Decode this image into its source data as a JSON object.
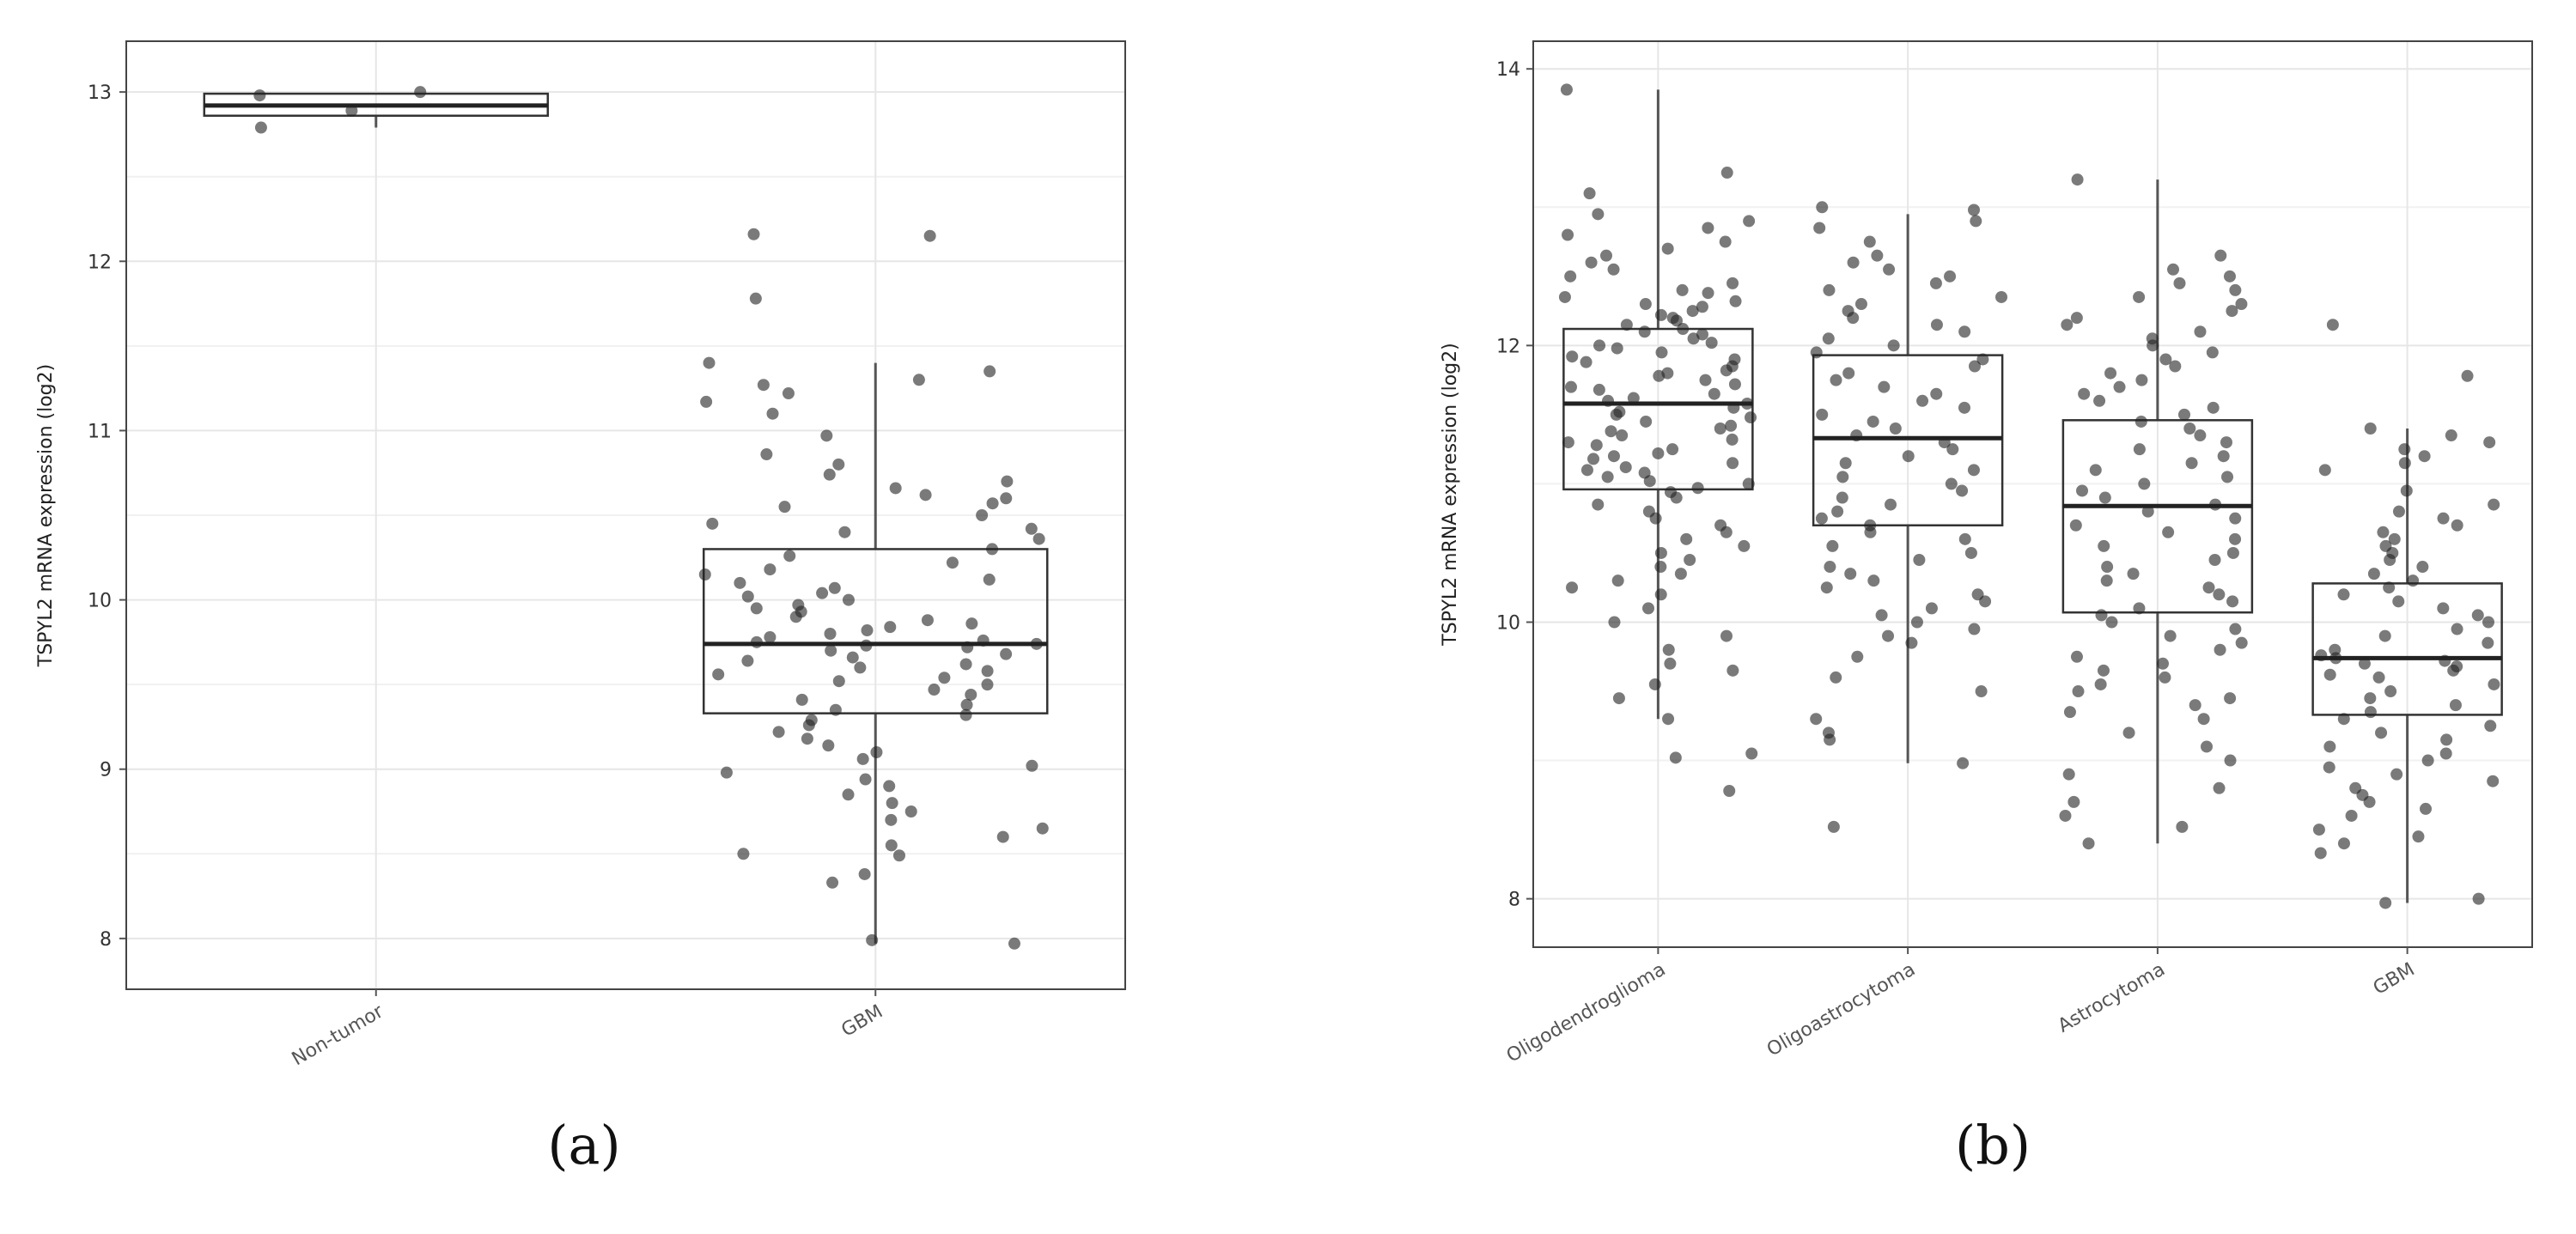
{
  "chart_data": [
    {
      "type": "box",
      "panel_label": "(a)",
      "ylabel": "TSPYL2 mRNA expression (log2)",
      "xlabel": "",
      "categories": [
        "Non-tumor",
        "GBM"
      ],
      "ylim": [
        7.7,
        13.3
      ],
      "yticks": [
        "8",
        "9",
        "10",
        "11",
        "12",
        "13"
      ],
      "grid": true,
      "boxes": [
        {
          "category": "Non-tumor",
          "whisker_low": 12.79,
          "q1": 12.86,
          "median": 12.92,
          "q3": 12.99,
          "whisker_high": 12.99
        },
        {
          "category": "GBM",
          "whisker_low": 7.97,
          "q1": 9.33,
          "median": 9.74,
          "q3": 10.3,
          "whisker_high": 11.4
        }
      ],
      "points": [
        {
          "category": "Non-tumor",
          "values": [
            13.0,
            12.98,
            12.89,
            12.79
          ]
        },
        {
          "category": "GBM",
          "values": [
            12.15,
            12.16,
            11.78,
            11.4,
            11.35,
            11.3,
            11.27,
            11.22,
            11.17,
            11.1,
            10.97,
            10.86,
            10.8,
            10.74,
            10.7,
            10.66,
            10.62,
            10.6,
            10.57,
            10.55,
            10.5,
            10.45,
            10.42,
            10.4,
            10.36,
            10.3,
            10.26,
            10.22,
            10.18,
            10.15,
            10.12,
            10.1,
            10.07,
            10.04,
            10.02,
            10.0,
            9.97,
            9.95,
            9.93,
            9.9,
            9.88,
            9.86,
            9.84,
            9.82,
            9.8,
            9.78,
            9.76,
            9.75,
            9.74,
            9.73,
            9.72,
            9.7,
            9.68,
            9.66,
            9.64,
            9.62,
            9.6,
            9.58,
            9.56,
            9.54,
            9.52,
            9.5,
            9.47,
            9.44,
            9.41,
            9.38,
            9.35,
            9.32,
            9.29,
            9.26,
            9.22,
            9.18,
            9.14,
            9.1,
            9.06,
            9.02,
            8.98,
            8.94,
            8.9,
            8.85,
            8.8,
            8.75,
            8.7,
            8.65,
            8.6,
            8.55,
            8.5,
            8.49,
            8.38,
            8.33,
            7.99,
            7.97
          ]
        }
      ]
    },
    {
      "type": "box",
      "panel_label": "(b)",
      "ylabel": "TSPYL2 mRNA expression (log2)",
      "xlabel": "",
      "categories": [
        "Oligodendroglioma",
        "Oligoastrocytoma",
        "Astrocytoma",
        "GBM"
      ],
      "ylim": [
        7.65,
        14.2
      ],
      "yticks": [
        "8",
        "10",
        "12",
        "14"
      ],
      "grid": true,
      "boxes": [
        {
          "category": "Oligodendroglioma",
          "whisker_low": 9.3,
          "q1": 10.96,
          "median": 11.58,
          "q3": 12.12,
          "whisker_high": 13.85
        },
        {
          "category": "Oligoastrocytoma",
          "whisker_low": 8.98,
          "q1": 10.7,
          "median": 11.33,
          "q3": 11.93,
          "whisker_high": 12.95
        },
        {
          "category": "Astrocytoma",
          "whisker_low": 8.4,
          "q1": 10.07,
          "median": 10.84,
          "q3": 11.46,
          "whisker_high": 13.2
        },
        {
          "category": "GBM",
          "whisker_low": 7.97,
          "q1": 9.33,
          "median": 9.74,
          "q3": 10.28,
          "whisker_high": 11.4
        }
      ],
      "points": [
        {
          "category": "Oligodendroglioma",
          "values": [
            13.85,
            13.25,
            13.1,
            12.95,
            12.9,
            12.85,
            12.8,
            12.75,
            12.7,
            12.65,
            12.6,
            12.55,
            12.5,
            12.45,
            12.4,
            12.38,
            12.35,
            12.32,
            12.3,
            12.28,
            12.25,
            12.22,
            12.2,
            12.18,
            12.15,
            12.12,
            12.1,
            12.08,
            12.05,
            12.02,
            12.0,
            11.98,
            11.95,
            11.92,
            11.9,
            11.88,
            11.85,
            11.82,
            11.8,
            11.78,
            11.75,
            11.72,
            11.7,
            11.68,
            11.65,
            11.62,
            11.6,
            11.58,
            11.55,
            11.52,
            11.5,
            11.48,
            11.45,
            11.42,
            11.4,
            11.38,
            11.35,
            11.32,
            11.3,
            11.28,
            11.25,
            11.22,
            11.2,
            11.18,
            11.15,
            11.12,
            11.1,
            11.08,
            11.05,
            11.02,
            11.0,
            10.97,
            10.94,
            10.9,
            10.85,
            10.8,
            10.75,
            10.7,
            10.65,
            10.6,
            10.55,
            10.5,
            10.45,
            10.4,
            10.35,
            10.3,
            10.25,
            10.2,
            10.1,
            10.0,
            9.9,
            9.8,
            9.7,
            9.65,
            9.55,
            9.45,
            9.3,
            9.05,
            9.02,
            8.78
          ]
        },
        {
          "category": "Oligoastrocytoma",
          "values": [
            13.0,
            12.98,
            12.9,
            12.85,
            12.75,
            12.65,
            12.6,
            12.55,
            12.5,
            12.45,
            12.4,
            12.35,
            12.3,
            12.25,
            12.2,
            12.15,
            12.1,
            12.05,
            12.0,
            11.95,
            11.9,
            11.85,
            11.8,
            11.75,
            11.7,
            11.65,
            11.6,
            11.55,
            11.5,
            11.45,
            11.4,
            11.35,
            11.3,
            11.25,
            11.2,
            11.15,
            11.1,
            11.05,
            11.0,
            10.95,
            10.9,
            10.85,
            10.8,
            10.75,
            10.7,
            10.65,
            10.6,
            10.55,
            10.5,
            10.45,
            10.4,
            10.35,
            10.3,
            10.25,
            10.2,
            10.15,
            10.1,
            10.05,
            10.0,
            9.95,
            9.9,
            9.85,
            9.75,
            9.6,
            9.5,
            9.3,
            9.2,
            9.15,
            8.98,
            8.52
          ]
        },
        {
          "category": "Astrocytoma",
          "values": [
            13.2,
            12.65,
            12.55,
            12.5,
            12.45,
            12.4,
            12.35,
            12.3,
            12.25,
            12.2,
            12.15,
            12.1,
            12.05,
            12.0,
            11.95,
            11.9,
            11.85,
            11.8,
            11.75,
            11.7,
            11.65,
            11.6,
            11.55,
            11.5,
            11.45,
            11.4,
            11.35,
            11.3,
            11.25,
            11.2,
            11.15,
            11.1,
            11.05,
            11.0,
            10.95,
            10.9,
            10.85,
            10.8,
            10.75,
            10.7,
            10.65,
            10.6,
            10.55,
            10.5,
            10.45,
            10.4,
            10.35,
            10.3,
            10.25,
            10.2,
            10.15,
            10.1,
            10.05,
            10.0,
            9.95,
            9.9,
            9.85,
            9.8,
            9.75,
            9.7,
            9.65,
            9.6,
            9.55,
            9.5,
            9.45,
            9.4,
            9.35,
            9.3,
            9.2,
            9.1,
            9.0,
            8.9,
            8.8,
            8.7,
            8.6,
            8.52,
            8.4
          ]
        },
        {
          "category": "GBM",
          "values": [
            12.15,
            11.78,
            11.4,
            11.35,
            11.3,
            11.25,
            11.2,
            11.15,
            11.1,
            10.95,
            10.85,
            10.8,
            10.75,
            10.7,
            10.65,
            10.6,
            10.55,
            10.5,
            10.45,
            10.4,
            10.35,
            10.3,
            10.25,
            10.2,
            10.15,
            10.1,
            10.05,
            10.0,
            9.95,
            9.9,
            9.85,
            9.8,
            9.76,
            9.74,
            9.72,
            9.7,
            9.68,
            9.65,
            9.62,
            9.6,
            9.55,
            9.5,
            9.45,
            9.4,
            9.35,
            9.3,
            9.25,
            9.2,
            9.15,
            9.1,
            9.05,
            9.0,
            8.95,
            8.9,
            8.85,
            8.8,
            8.75,
            8.7,
            8.65,
            8.6,
            8.5,
            8.45,
            8.4,
            8.33,
            8.0,
            7.97
          ]
        }
      ]
    }
  ]
}
